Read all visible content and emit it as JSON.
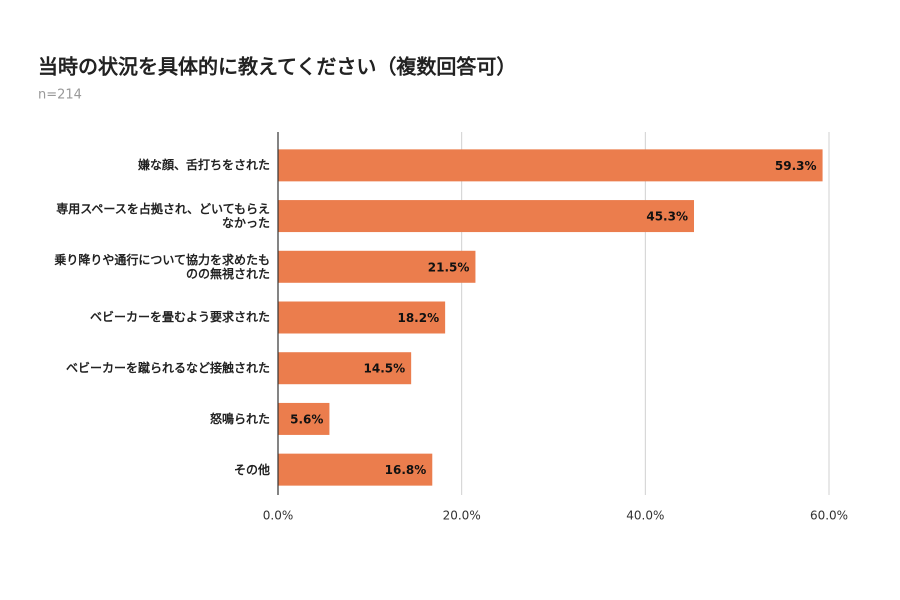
{
  "chart_data": {
    "type": "bar",
    "orientation": "horizontal",
    "title": "当時の状況を具体的に教えてください（複数回答可）",
    "subtitle": "n=214",
    "categories": [
      "嫌な顔、舌打ちをされた",
      "専用スペースを占拠され、どいてもらえなかった",
      "乗り降りや通行について協力を求めたものの無視された",
      "ベビーカーを畳むよう要求された",
      "ベビーカーを蹴られるなど接触された",
      "怒鳴られた",
      "その他"
    ],
    "values": [
      59.3,
      45.3,
      21.5,
      18.2,
      14.5,
      5.6,
      16.8
    ],
    "value_labels": [
      "59.3%",
      "45.3%",
      "21.5%",
      "18.2%",
      "14.5%",
      "5.6%",
      "16.8%"
    ],
    "color": "#eb7d4d",
    "xlim": [
      0,
      60
    ],
    "xticks": [
      {
        "value": 0,
        "label": "0.0%"
      },
      {
        "value": 20,
        "label": "20.0%"
      },
      {
        "value": 40,
        "label": "40.0%"
      },
      {
        "value": 60,
        "label": "60.0%"
      }
    ],
    "grid": true
  }
}
